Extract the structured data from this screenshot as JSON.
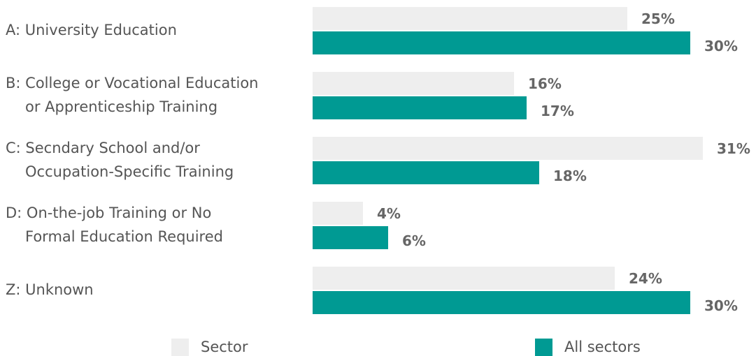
{
  "chart_data": {
    "type": "hbar",
    "categories": [
      [
        "A: University Education"
      ],
      [
        "B: College or Vocational Education",
        "or Apprenticeship Training"
      ],
      [
        "C: Secndary School and/or",
        "Occupation-Specific Training"
      ],
      [
        "D: On-the-job Training or No",
        "Formal Education Required"
      ],
      [
        "Z: Unknown"
      ]
    ],
    "series": [
      {
        "name": "Sector",
        "color": "#eeeeee",
        "values": [
          25,
          16,
          31,
          4,
          24
        ],
        "value_labels": [
          "25%",
          "16%",
          "31%",
          "4%",
          "24%"
        ]
      },
      {
        "name": "All sectors",
        "color": "#009a93",
        "values": [
          30,
          17,
          18,
          6,
          30
        ],
        "value_labels": [
          "30%",
          "17%",
          "18%",
          "6%",
          "30%"
        ]
      }
    ]
  }
}
